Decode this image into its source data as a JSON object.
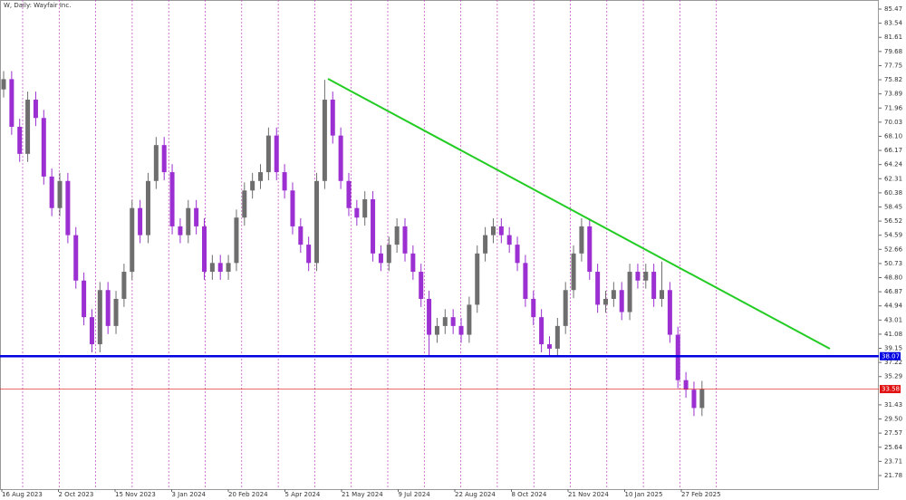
{
  "chart_data": {
    "type": "candlestick",
    "title": "W, Daily:  Wayfair Inc.",
    "categories": [
      "16 Aug 2023",
      "2 Oct 2023",
      "15 Nov 2023",
      "3 Jan 2024",
      "20 Feb 2024",
      "5 Apr 2024",
      "21 May 2024",
      "9 Jul 2024",
      "22 Aug 2024",
      "8 Oct 2024",
      "21 Nov 2024",
      "10 Jan 2025",
      "27 Feb 2025"
    ],
    "open": [
      74.5,
      75.9,
      69.4,
      65.7,
      73.1,
      70.6,
      62.6,
      58.3,
      62.0,
      54.6,
      48.4,
      43.4,
      39.7,
      47.1,
      42.2,
      45.9,
      49.6,
      58.3,
      54.6,
      62.0,
      66.9,
      63.2,
      55.8,
      54.6,
      58.3,
      55.8,
      49.6,
      50.8,
      49.6,
      50.8,
      57.0,
      60.7,
      62.0,
      63.2,
      68.2,
      63.2,
      60.7,
      55.8,
      53.3,
      50.8,
      62.0,
      73.1,
      68.2,
      62.0,
      58.3,
      57.0,
      59.5,
      52.1,
      50.8,
      53.3,
      55.8,
      52.1,
      49.6,
      45.9,
      41.0,
      42.2,
      43.4,
      42.2,
      41.0,
      45.1,
      52.1,
      54.6,
      55.8,
      54.6,
      53.3,
      50.8,
      45.9,
      43.4,
      39.7,
      39.1,
      42.2,
      47.1,
      52.1,
      55.8,
      49.6,
      45.1,
      45.9,
      47.1,
      44.1,
      49.6,
      48.4,
      49.6,
      45.9,
      47.1,
      41.0,
      34.8,
      33.5,
      31.0
    ],
    "high": [
      77.0,
      77.0,
      70.5,
      74.2,
      74.2,
      71.7,
      63.7,
      63.1,
      63.1,
      55.7,
      49.5,
      44.5,
      48.2,
      48.2,
      47.0,
      50.7,
      59.4,
      59.4,
      63.1,
      68.0,
      68.0,
      64.3,
      56.9,
      59.4,
      59.4,
      56.9,
      51.9,
      51.9,
      51.9,
      58.1,
      61.8,
      63.1,
      64.3,
      69.3,
      69.3,
      64.3,
      61.8,
      56.9,
      54.4,
      63.1,
      75.8,
      74.2,
      69.3,
      63.1,
      59.4,
      60.6,
      60.6,
      53.2,
      54.4,
      56.9,
      56.9,
      53.2,
      50.7,
      47.0,
      43.3,
      44.5,
      44.5,
      43.3,
      46.2,
      53.2,
      55.7,
      56.9,
      56.9,
      55.7,
      54.4,
      51.9,
      47.0,
      44.5,
      40.8,
      43.3,
      48.2,
      53.2,
      56.9,
      56.9,
      50.7,
      47.0,
      48.2,
      48.2,
      50.7,
      50.7,
      50.7,
      50.7,
      51.0,
      48.2,
      42.1,
      35.9,
      34.6,
      34.7
    ],
    "low": [
      73.4,
      68.3,
      64.6,
      64.6,
      69.5,
      61.5,
      57.2,
      57.2,
      53.5,
      47.3,
      42.3,
      38.6,
      38.6,
      41.1,
      41.1,
      44.8,
      48.5,
      53.5,
      53.5,
      60.9,
      62.1,
      54.7,
      53.5,
      53.5,
      54.7,
      48.5,
      48.5,
      48.5,
      48.5,
      49.7,
      55.9,
      59.6,
      60.9,
      62.1,
      62.1,
      59.6,
      54.7,
      52.2,
      49.7,
      49.7,
      60.9,
      67.1,
      60.9,
      57.2,
      55.9,
      55.9,
      51.0,
      49.7,
      49.7,
      52.2,
      51.0,
      48.5,
      44.8,
      38.1,
      39.9,
      41.1,
      41.1,
      39.9,
      39.9,
      44.0,
      51.0,
      53.5,
      53.5,
      52.2,
      49.7,
      44.8,
      42.3,
      38.6,
      38.0,
      38.0,
      41.1,
      46.0,
      51.0,
      48.5,
      44.0,
      44.0,
      44.8,
      43.0,
      43.0,
      47.3,
      47.3,
      44.8,
      44.8,
      39.9,
      33.7,
      32.4,
      29.9,
      29.9
    ],
    "close": [
      75.9,
      69.4,
      65.7,
      73.1,
      70.6,
      62.6,
      58.3,
      62.0,
      54.6,
      48.4,
      43.4,
      39.7,
      47.1,
      42.2,
      45.9,
      49.6,
      58.3,
      54.6,
      62.0,
      66.9,
      63.2,
      55.8,
      54.6,
      58.3,
      55.8,
      49.6,
      50.8,
      49.6,
      50.8,
      57.0,
      60.7,
      62.0,
      63.2,
      68.2,
      63.2,
      60.7,
      55.8,
      53.3,
      50.8,
      62.0,
      73.1,
      68.2,
      62.0,
      58.3,
      57.0,
      59.5,
      52.1,
      50.8,
      53.3,
      55.8,
      52.1,
      49.6,
      45.9,
      41.0,
      42.2,
      43.4,
      42.2,
      41.0,
      45.1,
      52.1,
      54.6,
      55.8,
      54.6,
      53.3,
      50.8,
      45.9,
      43.4,
      39.7,
      39.1,
      42.2,
      47.1,
      52.1,
      55.8,
      49.6,
      45.1,
      45.9,
      47.1,
      44.1,
      49.6,
      48.4,
      49.6,
      45.9,
      47.1,
      41.0,
      34.8,
      33.5,
      31.0,
      33.58
    ],
    "up_color": "#6e6e6e",
    "down_color": "#9b2fd1",
    "support": 38.07,
    "support_color": "#0000e0",
    "price": 33.58,
    "price_color": "#e01010",
    "trendline": [
      75.95,
      39.09
    ],
    "trendline_color": "#22cc22",
    "ylim": [
      19.92,
      86.71
    ],
    "yticks": [
      85.47,
      83.54,
      81.61,
      79.68,
      77.75,
      75.82,
      73.89,
      71.96,
      {
        "value": 70.03,
        "label": "70.03"
      },
      {
        "value": 68.1,
        "label": "68.10"
      },
      66.17,
      64.24,
      62.31,
      60.38,
      58.45,
      56.52,
      54.59,
      52.66,
      50.73,
      {
        "value": 48.8,
        "label": "48.80"
      },
      46.87,
      44.94,
      43.01,
      41.08,
      39.15,
      37.22,
      35.29,
      31.43,
      {
        "value": 29.5,
        "label": "29.50"
      },
      27.57,
      25.64,
      23.71,
      21.78
    ]
  }
}
